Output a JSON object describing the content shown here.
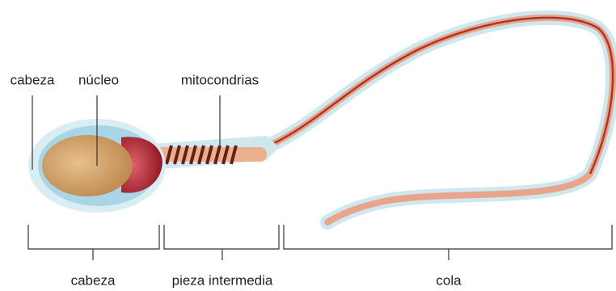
{
  "labels": {
    "top": [
      "cabeza",
      "núcleo",
      "mitocondrias"
    ],
    "bottom": [
      "cabeza",
      "pieza intermedia",
      "cola"
    ]
  }
}
